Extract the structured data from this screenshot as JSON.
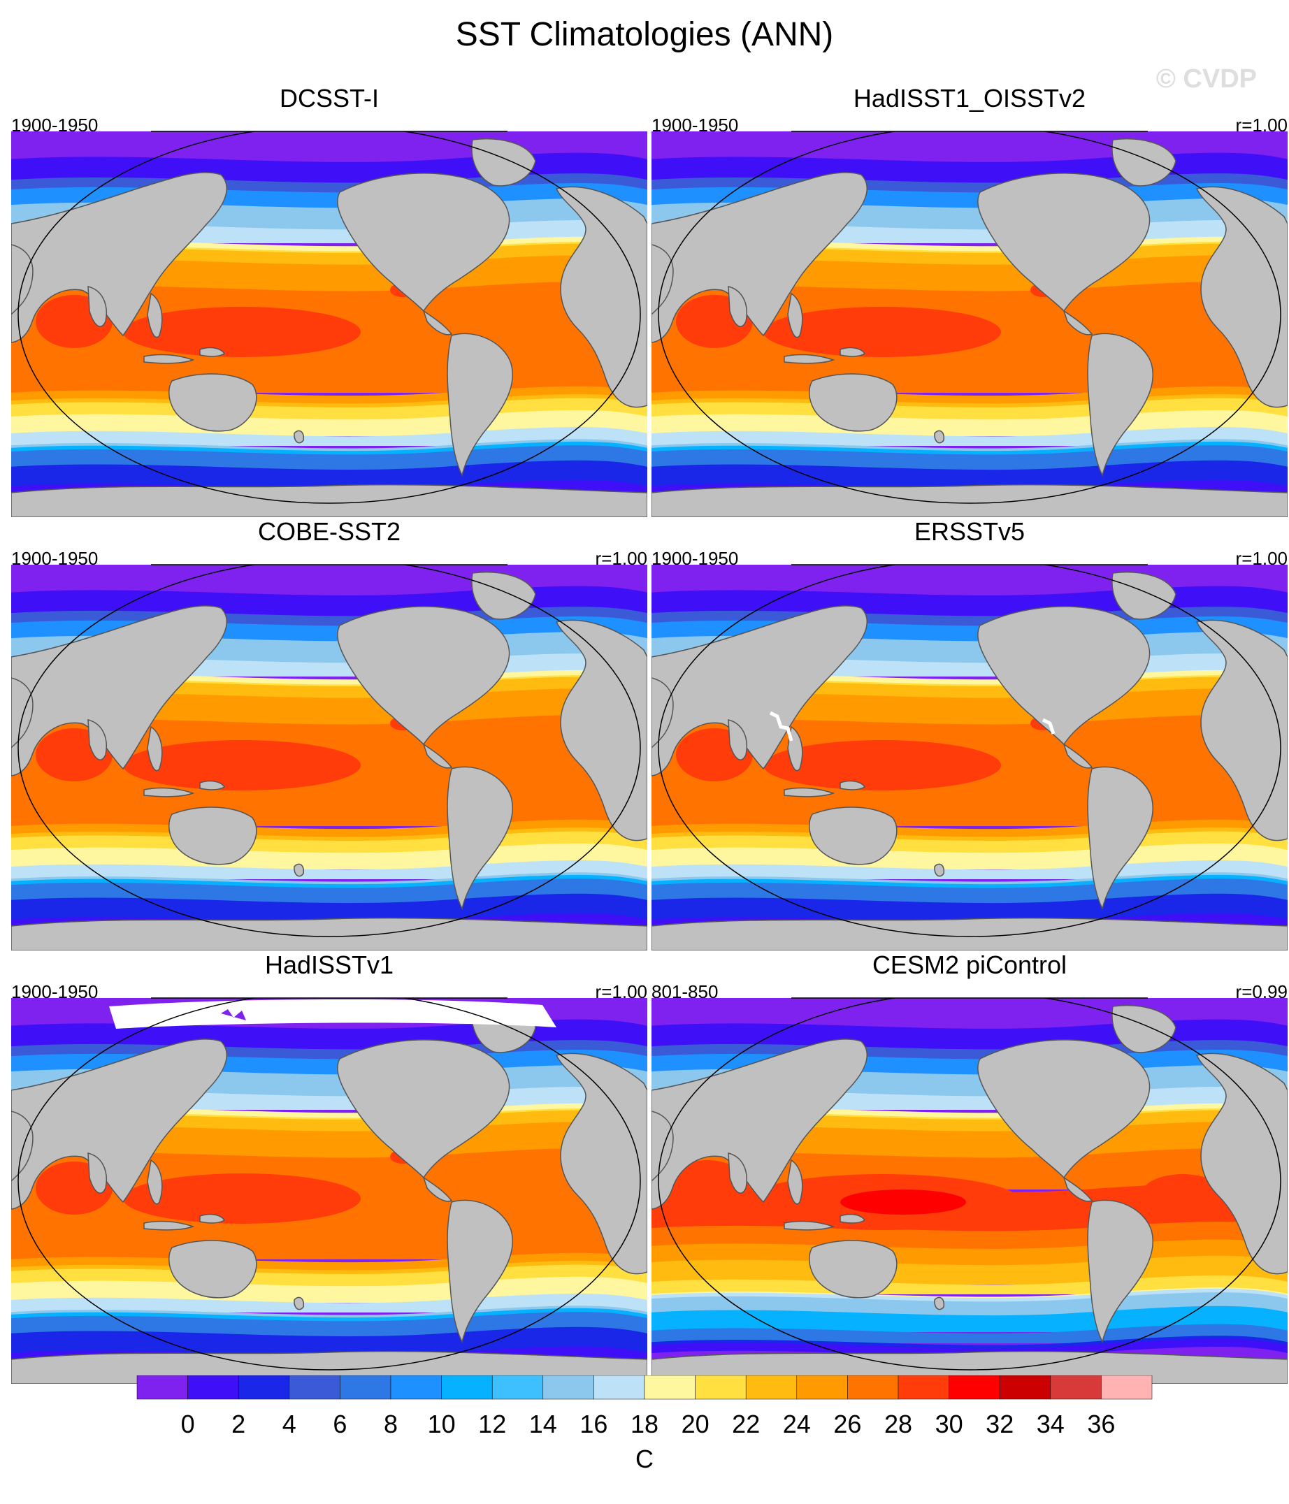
{
  "figure": {
    "title": "SST Climatologies (ANN)",
    "watermark": "© CVDP"
  },
  "panels": [
    {
      "name": "DCSST-I",
      "period": "1900-1950",
      "corr": "",
      "variant": "standard"
    },
    {
      "name": "HadISST1_OISSTv2",
      "period": "1900-1950",
      "corr": "r=1.00",
      "variant": "standard"
    },
    {
      "name": "COBE-SST2",
      "period": "1900-1950",
      "corr": "r=1.00",
      "variant": "standard"
    },
    {
      "name": "ERSSTv5",
      "period": "1900-1950",
      "corr": "r=1.00",
      "variant": "coarse"
    },
    {
      "name": "HadISSTv1",
      "period": "1900-1950",
      "corr": "r=1.00",
      "variant": "icefree"
    },
    {
      "name": "CESM2 piControl",
      "period": "801-850",
      "corr": "r=0.99",
      "variant": "warm"
    }
  ],
  "colorbar": {
    "unit": "C",
    "tick_labels": [
      "0",
      "2",
      "4",
      "6",
      "8",
      "10",
      "12",
      "14",
      "16",
      "18",
      "20",
      "22",
      "24",
      "26",
      "28",
      "30",
      "32",
      "34",
      "36"
    ],
    "bin_colors": [
      "#7f22f0",
      "#3f0ff8",
      "#1a27e8",
      "#3a5ad8",
      "#2e78e6",
      "#1e90ff",
      "#06b2ff",
      "#3ec0ff",
      "#8cc8ee",
      "#bde2f7",
      "#fff7a0",
      "#ffe040",
      "#ffbb10",
      "#ff9b00",
      "#ff7400",
      "#ff3c0a",
      "#ff0000",
      "#cc0000",
      "#d83a3a",
      "#ffb3b3"
    ],
    "land_color": "#c0c0c0"
  }
}
